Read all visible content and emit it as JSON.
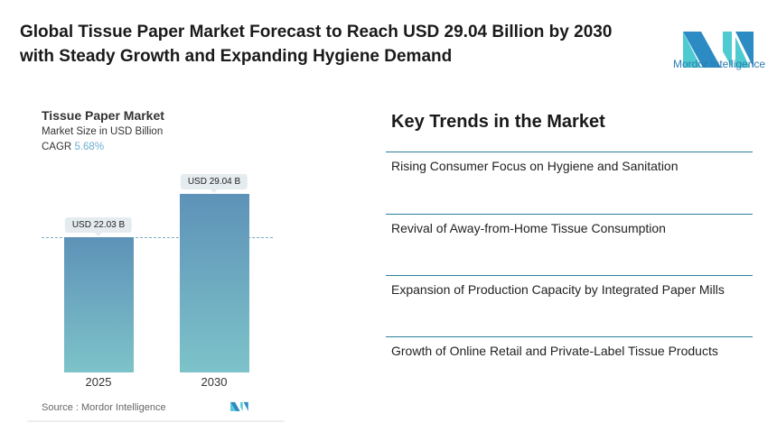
{
  "header": {
    "title": "Global Tissue Paper Market Forecast to Reach USD 29.04 Billion by 2030 with Steady Growth and Expanding Hygiene Demand",
    "logo_text": "Mordor Intelligence"
  },
  "chart_data": {
    "type": "bar",
    "title": "Tissue Paper Market",
    "subtitle": "Market Size in USD Billion",
    "cagr_label": "CAGR",
    "cagr_value": "5.68%",
    "categories": [
      "2025",
      "2030"
    ],
    "values": [
      22.03,
      29.04
    ],
    "data_labels": [
      "USD 22.03 B",
      "USD 29.04 B"
    ],
    "ylim": [
      0,
      29.04
    ],
    "grid": false,
    "source": "Source :  Mordor Intelligence",
    "colors": {
      "bar_top": "#5e92b8",
      "bar_bottom": "#7dc3c9",
      "cagr": "#6aaed0"
    }
  },
  "trends": {
    "heading": "Key Trends in the Market",
    "items": [
      "Rising Consumer Focus on Hygiene and Sanitation",
      "Revival of Away-from-Home Tissue Consumption",
      "Expansion of Production Capacity by Integrated Paper Mills",
      "Growth of Online Retail and Private-Label Tissue Products"
    ]
  }
}
